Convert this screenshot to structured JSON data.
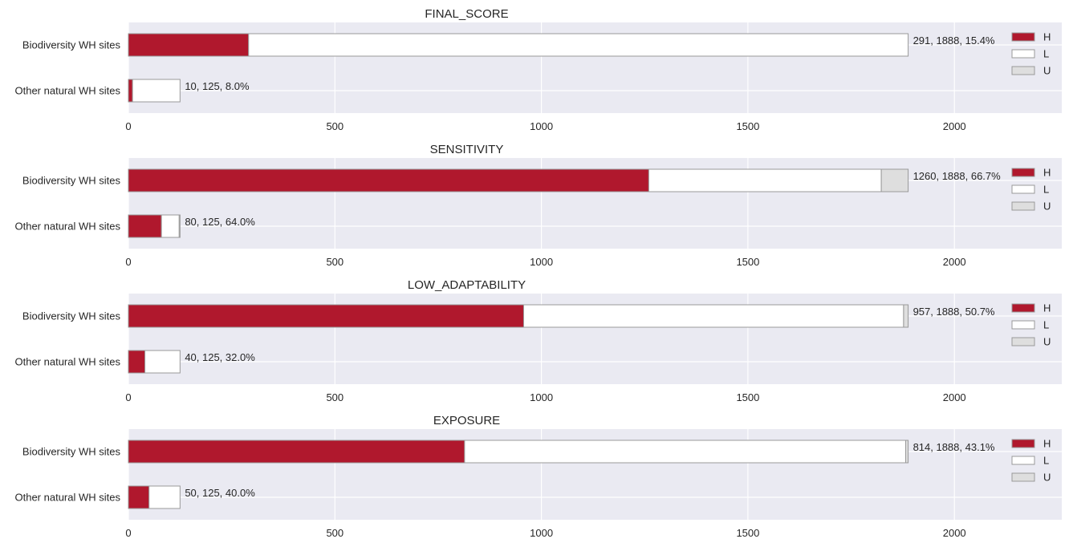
{
  "chart_data": [
    {
      "type": "bar",
      "orientation": "horizontal",
      "stacked": true,
      "title": "FINAL_SCORE",
      "categories": [
        "Biodiversity WH sites",
        "Other natural WH sites"
      ],
      "series": [
        {
          "name": "H",
          "values": [
            291,
            10
          ]
        },
        {
          "name": "L",
          "values": [
            1597,
            115
          ]
        },
        {
          "name": "U",
          "values": [
            0,
            0
          ]
        }
      ],
      "annotations": [
        "291, 1888, 15.4%",
        "10, 125, 8.0%"
      ],
      "xlim": [
        0,
        2260
      ],
      "xticks": [
        0,
        500,
        1000,
        1500,
        2000
      ],
      "grid": true,
      "legend_position": "right"
    },
    {
      "type": "bar",
      "orientation": "horizontal",
      "stacked": true,
      "title": "SENSITIVITY",
      "categories": [
        "Biodiversity WH sites",
        "Other natural WH sites"
      ],
      "series": [
        {
          "name": "H",
          "values": [
            1260,
            80
          ]
        },
        {
          "name": "L",
          "values": [
            563,
            43
          ]
        },
        {
          "name": "U",
          "values": [
            65,
            2
          ]
        }
      ],
      "annotations": [
        "1260, 1888, 66.7%",
        "80, 125, 64.0%"
      ],
      "xlim": [
        0,
        2260
      ],
      "xticks": [
        0,
        500,
        1000,
        1500,
        2000
      ],
      "grid": true,
      "legend_position": "right"
    },
    {
      "type": "bar",
      "orientation": "horizontal",
      "stacked": true,
      "title": "LOW_ADAPTABILITY",
      "categories": [
        "Biodiversity WH sites",
        "Other natural WH sites"
      ],
      "series": [
        {
          "name": "H",
          "values": [
            957,
            40
          ]
        },
        {
          "name": "L",
          "values": [
            920,
            85
          ]
        },
        {
          "name": "U",
          "values": [
            11,
            0
          ]
        }
      ],
      "annotations": [
        "957, 1888, 50.7%",
        "40, 125, 32.0%"
      ],
      "xlim": [
        0,
        2260
      ],
      "xticks": [
        0,
        500,
        1000,
        1500,
        2000
      ],
      "grid": true,
      "legend_position": "right"
    },
    {
      "type": "bar",
      "orientation": "horizontal",
      "stacked": true,
      "title": "EXPOSURE",
      "categories": [
        "Biodiversity WH sites",
        "Other natural WH sites"
      ],
      "series": [
        {
          "name": "H",
          "values": [
            814,
            50
          ]
        },
        {
          "name": "L",
          "values": [
            1068,
            75
          ]
        },
        {
          "name": "U",
          "values": [
            6,
            0
          ]
        }
      ],
      "annotations": [
        "814, 1888, 43.1%",
        "50, 125, 40.0%"
      ],
      "xlim": [
        0,
        2260
      ],
      "xticks": [
        0,
        500,
        1000,
        1500,
        2000
      ],
      "grid": true,
      "legend_position": "right"
    }
  ],
  "colors": {
    "H": "#b0182d",
    "L": "#ffffff",
    "U": "#dedede",
    "plot_background": "#eaeaf2",
    "grid": "#ffffff",
    "bar_edge": "#999999"
  }
}
